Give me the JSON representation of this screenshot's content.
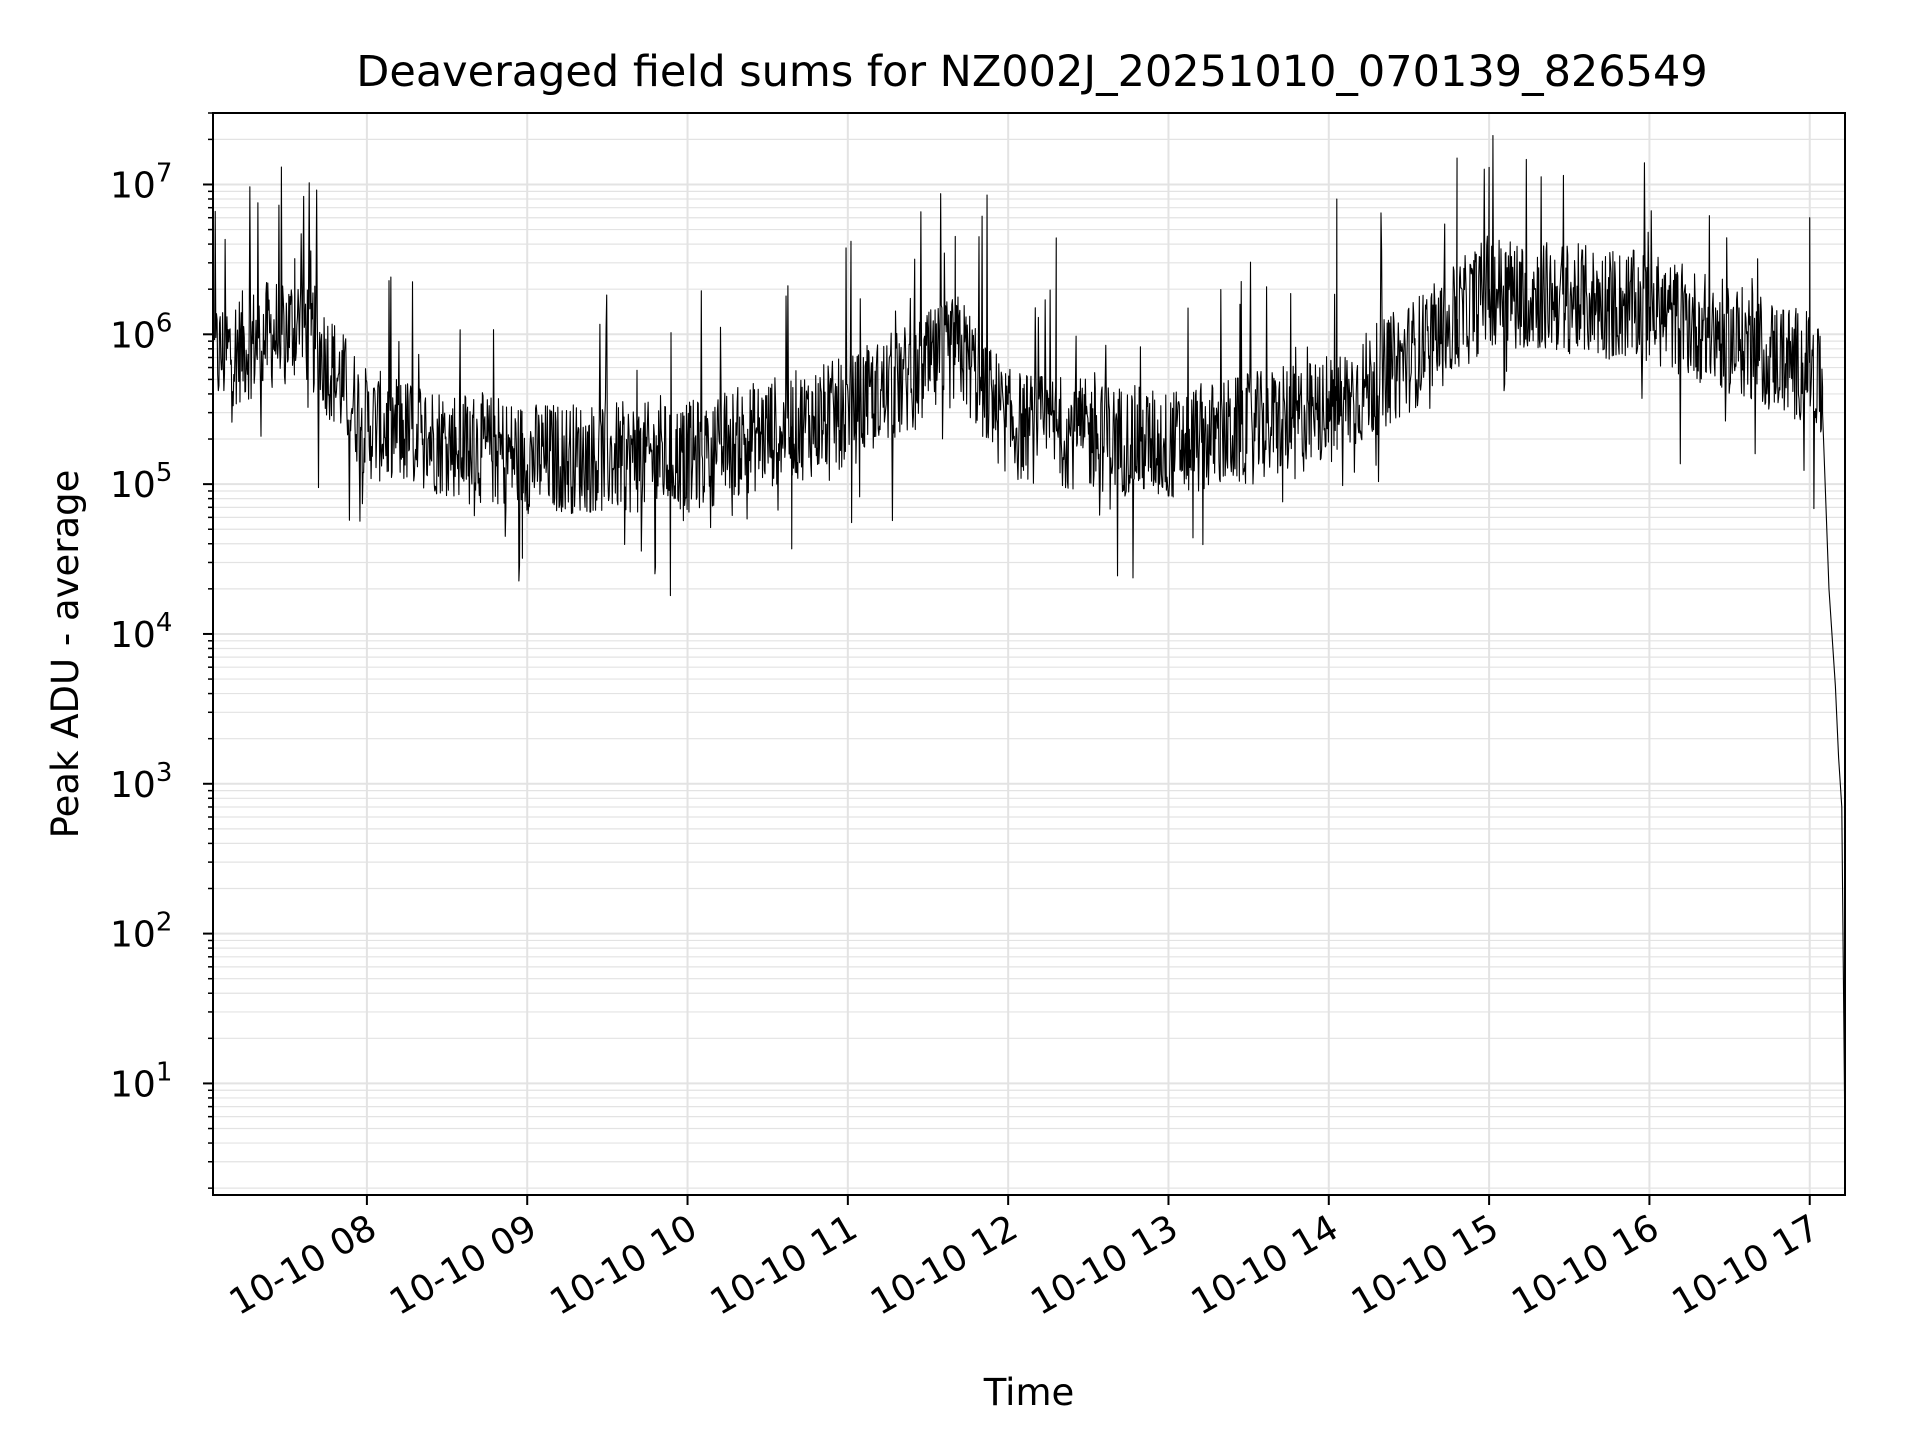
{
  "chart_data": {
    "type": "line",
    "title": "Deaveraged field sums for NZ002J_20251010_070139_826549",
    "xlabel": "Time",
    "ylabel": "Peak ADU - average",
    "yscale": "log",
    "ylim": [
      1.8,
      30000000.0
    ],
    "xlim_hours": [
      7.04,
      17.22
    ],
    "x_tick_hours": [
      8,
      9,
      10,
      11,
      12,
      13,
      14,
      15,
      16,
      17
    ],
    "x_tick_labels": [
      "10-10 08",
      "10-10 09",
      "10-10 10",
      "10-10 11",
      "10-10 12",
      "10-10 13",
      "10-10 14",
      "10-10 15",
      "10-10 16",
      "10-10 17"
    ],
    "y_tick_exponents": [
      1,
      2,
      3,
      4,
      5,
      6,
      7
    ],
    "y_tick_labels": [
      {
        "base": "10",
        "exp": "1"
      },
      {
        "base": "10",
        "exp": "2"
      },
      {
        "base": "10",
        "exp": "3"
      },
      {
        "base": "10",
        "exp": "4"
      },
      {
        "base": "10",
        "exp": "5"
      },
      {
        "base": "10",
        "exp": "6"
      },
      {
        "base": "10",
        "exp": "7"
      }
    ],
    "grid": true,
    "line_color": "#000000",
    "grid_color": "#e3e3e3",
    "baseline_trend": [
      {
        "hour": 7.05,
        "value": 700000
      },
      {
        "hour": 7.6,
        "value": 1200000
      },
      {
        "hour": 8.0,
        "value": 250000
      },
      {
        "hour": 9.0,
        "value": 150000
      },
      {
        "hour": 10.0,
        "value": 150000
      },
      {
        "hour": 10.5,
        "value": 220000
      },
      {
        "hour": 11.0,
        "value": 300000
      },
      {
        "hour": 11.7,
        "value": 800000
      },
      {
        "hour": 12.0,
        "value": 250000
      },
      {
        "hour": 13.0,
        "value": 180000
      },
      {
        "hour": 14.0,
        "value": 300000
      },
      {
        "hour": 14.7,
        "value": 1000000
      },
      {
        "hour": 15.0,
        "value": 2000000
      },
      {
        "hour": 16.0,
        "value": 1500000
      },
      {
        "hour": 17.0,
        "value": 600000
      },
      {
        "hour": 17.08,
        "value": 400000
      }
    ],
    "tail_drop": [
      {
        "hour": 17.08,
        "value": 300000
      },
      {
        "hour": 17.12,
        "value": 20000
      },
      {
        "hour": 17.16,
        "value": 4500
      },
      {
        "hour": 17.18,
        "value": 1500
      },
      {
        "hour": 17.2,
        "value": 700
      },
      {
        "hour": 17.22,
        "value": 3.8
      }
    ],
    "spike_peaks": [
      {
        "hour": 7.55,
        "value": 3200000
      },
      {
        "hour": 7.65,
        "value": 3600000
      },
      {
        "hour": 11.67,
        "value": 4500000
      },
      {
        "hour": 12.3,
        "value": 4400000
      },
      {
        "hour": 14.05,
        "value": 8000000
      },
      {
        "hour": 14.8,
        "value": 15000000
      },
      {
        "hour": 15.0,
        "value": 13000000
      },
      {
        "hour": 17.0,
        "value": 6000000
      }
    ],
    "min_dips": [
      {
        "hour": 8.97,
        "value": 32000
      },
      {
        "hour": 9.8,
        "value": 28000
      },
      {
        "hour": 10.65,
        "value": 37000
      }
    ]
  }
}
